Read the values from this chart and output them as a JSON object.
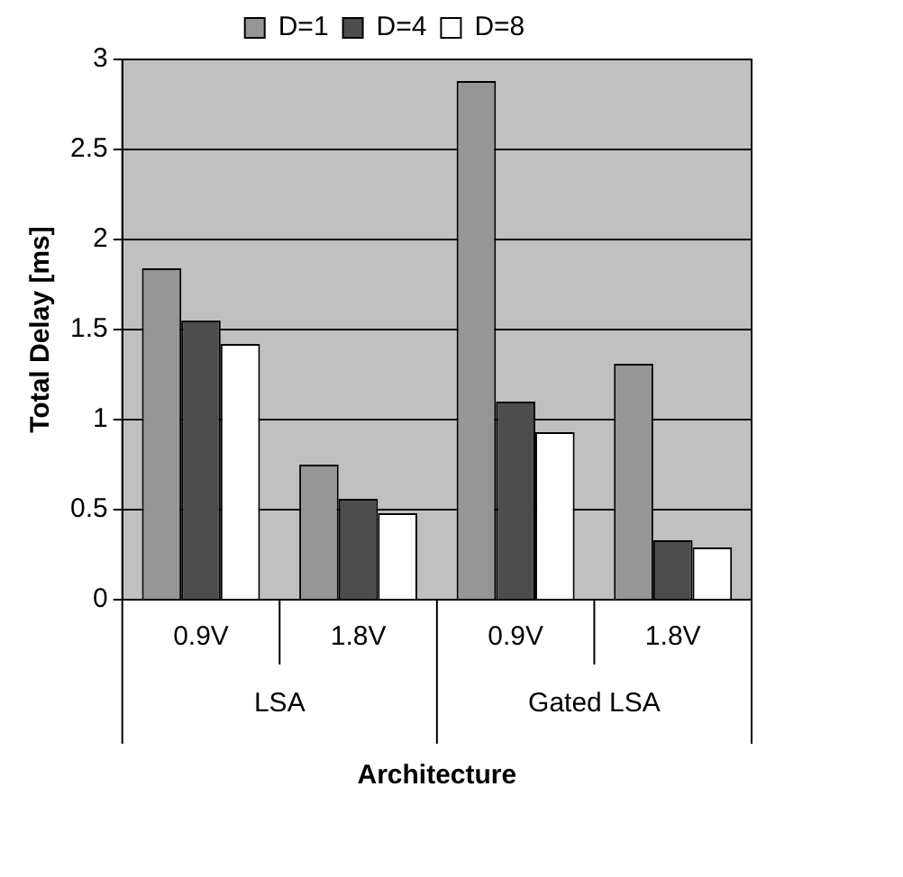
{
  "chart_data": {
    "type": "bar",
    "xlabel": "Architecture",
    "ylabel": "Total Delay [ms]",
    "categories": [
      "0.9V",
      "1.8V",
      "0.9V",
      "1.8V"
    ],
    "series": [
      {
        "name": "D=1",
        "color": "#969696",
        "values": [
          1.84,
          0.75,
          2.88,
          1.31
        ]
      },
      {
        "name": "D=4",
        "color": "#4d4d4d",
        "values": [
          1.55,
          0.56,
          1.1,
          0.33
        ]
      },
      {
        "name": "D=8",
        "color": "#ffffff",
        "values": [
          1.42,
          0.48,
          0.93,
          0.29
        ]
      }
    ],
    "annotations": [
      "LSA",
      "Gated LSA"
    ],
    "ylim": [
      0,
      3
    ],
    "yticks": [
      0,
      0.5,
      1,
      1.5,
      2,
      2.5,
      3
    ],
    "grid": "y",
    "legend": "top"
  }
}
